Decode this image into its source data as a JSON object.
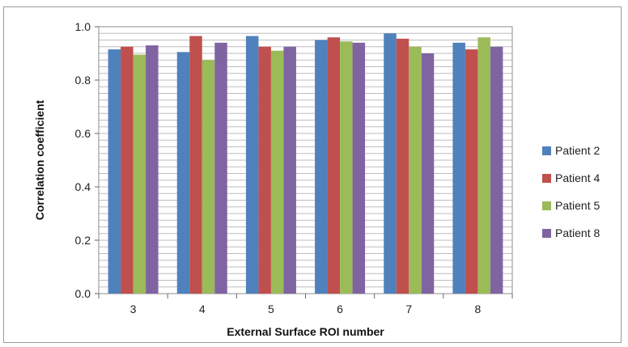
{
  "chart_data": {
    "type": "bar",
    "title": "",
    "xlabel": "External Surface  ROI number",
    "ylabel": "Correlation coefficient",
    "categories": [
      "3",
      "4",
      "5",
      "6",
      "7",
      "8"
    ],
    "ylim": [
      0.0,
      1.0
    ],
    "yticks": [
      "0.0",
      "0.2",
      "0.4",
      "0.6",
      "0.8",
      "1.0"
    ],
    "minor_grid_step": 0.025,
    "grid": true,
    "legend_position": "right",
    "series": [
      {
        "name": "Patient 2",
        "color": "#4F81BD",
        "values": [
          0.915,
          0.905,
          0.965,
          0.95,
          0.975,
          0.94
        ]
      },
      {
        "name": "Patient 4",
        "color": "#C0504D",
        "values": [
          0.925,
          0.965,
          0.925,
          0.96,
          0.955,
          0.915
        ]
      },
      {
        "name": "Patient 5",
        "color": "#9BBB59",
        "values": [
          0.895,
          0.875,
          0.91,
          0.945,
          0.925,
          0.96
        ]
      },
      {
        "name": "Patient 8",
        "color": "#8064A2",
        "values": [
          0.93,
          0.94,
          0.925,
          0.94,
          0.9,
          0.925
        ]
      }
    ]
  }
}
